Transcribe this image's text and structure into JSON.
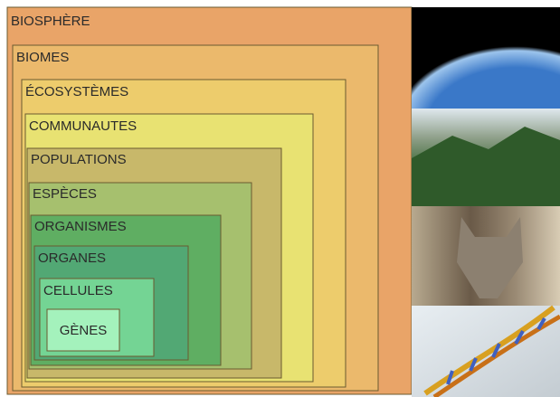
{
  "levels": [
    "BIOSPHÈRE",
    "BIOMES",
    "ÉCOSYSTÈMES",
    "COMMUNAUTES",
    "POPULATIONS",
    "ESPÈCES",
    "ORGANISMES",
    "ORGANES",
    "CELLULES",
    "GÈNES"
  ]
}
